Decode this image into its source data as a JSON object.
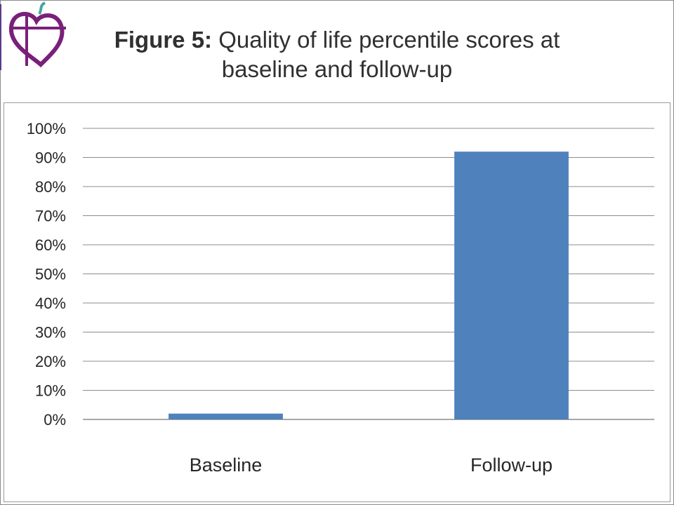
{
  "title": {
    "prefix": "Figure 5:",
    "line1": "Quality of life percentile scores at",
    "line2": "baseline and follow-up"
  },
  "colors": {
    "bar": "#4f81bd",
    "grid": "#8c8c8c",
    "logo": "#7a1f7a",
    "logo_accent": "#4aa3a3"
  },
  "logo": {
    "icon": "heart-cross-logo"
  },
  "chart_data": {
    "type": "bar",
    "title": "Figure 5: Quality of life percentile scores at baseline and follow-up",
    "categories": [
      "Baseline",
      "Follow-up"
    ],
    "values": [
      2,
      92
    ],
    "ylim": [
      0,
      100
    ],
    "yticks": [
      "0%",
      "10%",
      "20%",
      "30%",
      "40%",
      "50%",
      "60%",
      "70%",
      "80%",
      "90%",
      "100%"
    ],
    "grid": true,
    "legend": "none",
    "xlabel": "",
    "ylabel": ""
  }
}
